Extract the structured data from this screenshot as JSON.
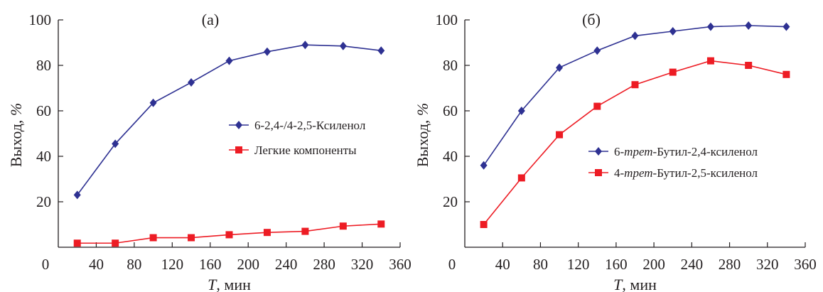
{
  "chart_data": [
    {
      "type": "line",
      "panel_label": "(а)",
      "xlabel_var": "T",
      "xlabel_unit": ", мин",
      "ylabel_var": "Выход, ",
      "ylabel_unit": "%",
      "xlim": [
        0,
        360
      ],
      "ylim": [
        0,
        100
      ],
      "x_ticks": [
        0,
        40,
        80,
        120,
        160,
        200,
        240,
        280,
        320,
        360
      ],
      "y_ticks": [
        20,
        40,
        60,
        80,
        100
      ],
      "origin_label": "0",
      "grid": false,
      "legend_position": "center-right",
      "x": [
        20,
        60,
        100,
        140,
        180,
        220,
        260,
        300,
        340
      ],
      "series": [
        {
          "name_parts": [
            {
              "text": "6-2,4-/4-2,5-Ксиленол",
              "italic": false
            }
          ],
          "color": "#2e3192",
          "marker": "diamond",
          "values": [
            23,
            45.5,
            63.5,
            72.5,
            82,
            86,
            89,
            88.5,
            86.5
          ]
        },
        {
          "name_parts": [
            {
              "text": "Легкие компоненты",
              "italic": false
            }
          ],
          "color": "#ed1c24",
          "marker": "square",
          "values": [
            1.8,
            1.8,
            4.2,
            4.2,
            5.5,
            6.5,
            7,
            9.3,
            10.2
          ]
        }
      ]
    },
    {
      "type": "line",
      "panel_label": "(б)",
      "xlabel_var": "T",
      "xlabel_unit": ", мин",
      "ylabel_var": "Выход, ",
      "ylabel_unit": "%",
      "xlim": [
        0,
        360
      ],
      "ylim": [
        0,
        100
      ],
      "x_ticks": [
        0,
        40,
        80,
        120,
        160,
        200,
        240,
        280,
        320,
        360
      ],
      "y_ticks": [
        20,
        40,
        60,
        80,
        100
      ],
      "origin_label": "0",
      "grid": false,
      "legend_position": "center-right",
      "x": [
        20,
        60,
        100,
        140,
        180,
        220,
        260,
        300,
        340
      ],
      "series": [
        {
          "name_parts": [
            {
              "text": "6-",
              "italic": false
            },
            {
              "text": "трет",
              "italic": true
            },
            {
              "text": "-Бутил-2,4-ксиленол",
              "italic": false
            }
          ],
          "color": "#2e3192",
          "marker": "diamond",
          "values": [
            36,
            60,
            79,
            86.5,
            93,
            95,
            97,
            97.5,
            97
          ]
        },
        {
          "name_parts": [
            {
              "text": "4-",
              "italic": false
            },
            {
              "text": "трет",
              "italic": true
            },
            {
              "text": "-Бутил-2,5-ксиленол",
              "italic": false
            }
          ],
          "color": "#ed1c24",
          "marker": "square",
          "values": [
            10,
            30.5,
            49.5,
            62,
            71.5,
            77,
            82,
            80,
            76
          ]
        }
      ]
    }
  ]
}
